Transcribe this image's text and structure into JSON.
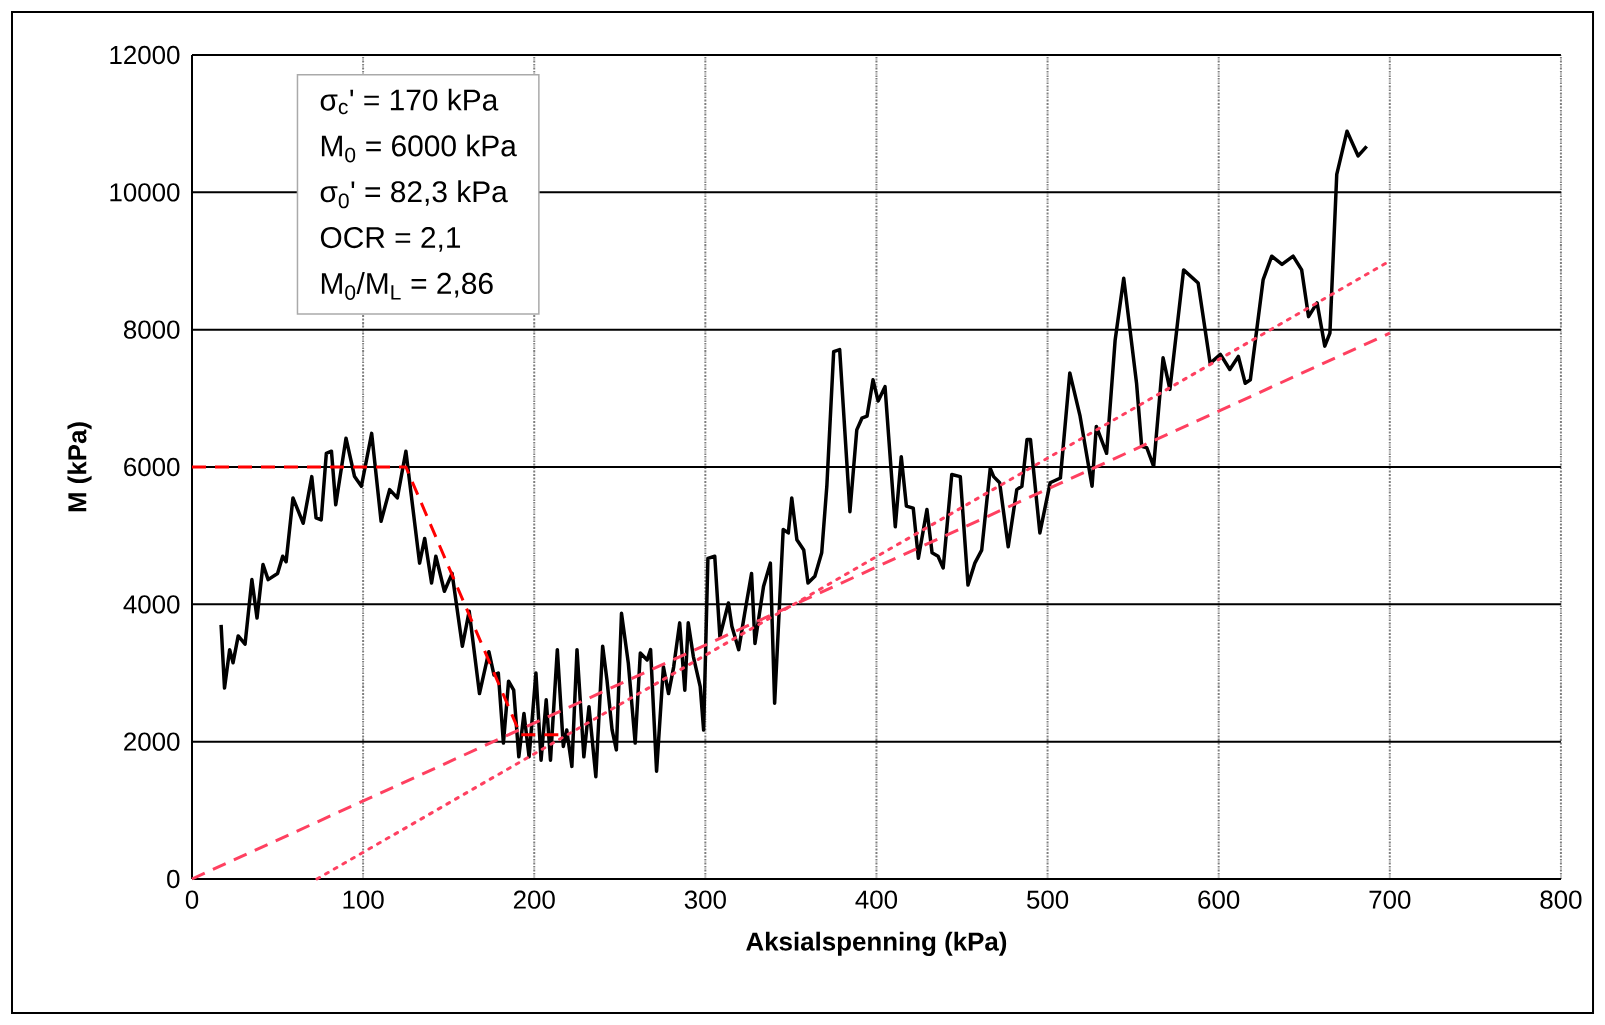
{
  "chart_data": {
    "type": "line",
    "xlabel": "Aksialspenning (kPa)",
    "ylabel": "M (kPa)",
    "xlim": [
      0,
      800
    ],
    "ylim": [
      0,
      12000
    ],
    "xticks": [
      0,
      100,
      200,
      300,
      400,
      500,
      600,
      700,
      800
    ],
    "yticks": [
      0,
      2000,
      4000,
      6000,
      8000,
      10000,
      12000
    ],
    "grid": true,
    "marker": "none",
    "annotations": [
      "σ$_{c}$' = 170 kPa",
      "M$_{0}$ = 6000 kPa",
      "σ$_{0}$' = 82,3 kPa",
      "OCR =  2,1",
      "M$_{0}$/M$_{L}$ = 2,86"
    ],
    "series": [
      {
        "color": "#000000",
        "line_style": "solid",
        "x": [
          17,
          19,
          22,
          24,
          27,
          31,
          35,
          38,
          41.5,
          44.5,
          50,
          53,
          55,
          59,
          65,
          70,
          72.5,
          75.5,
          78.5,
          81.5,
          84,
          90,
          95,
          99,
          105,
          110.5,
          115.5,
          120,
          125,
          133,
          136,
          140,
          142.5,
          147.5,
          152,
          158,
          162,
          168,
          173.5,
          176.5,
          179,
          182,
          185,
          188,
          191,
          194,
          197,
          201,
          204,
          207,
          209.5,
          213.5,
          217,
          219,
          222,
          225,
          229,
          232,
          236,
          240,
          242.5,
          245.5,
          248,
          251,
          255,
          259,
          262,
          266,
          268,
          271.5,
          275.5,
          278.5,
          281.5,
          285,
          288,
          290,
          293,
          297,
          299,
          301.5,
          305.5,
          308.5,
          313.5,
          315.5,
          319.5,
          323,
          327,
          329,
          334,
          338,
          340.5,
          345.5,
          348.5,
          350.5,
          353.5,
          357.5,
          360,
          364,
          368,
          371,
          375,
          378.5,
          384.5,
          388.5,
          391.5,
          394.5,
          398,
          401,
          405,
          411,
          414.5,
          417.5,
          421.5,
          424.5,
          429.5,
          432.5,
          436,
          439,
          444,
          449,
          453.5,
          457.5,
          461.5,
          466.5,
          468.5,
          472,
          477,
          482,
          485,
          488,
          490,
          495.5,
          501.5,
          507.5,
          513,
          519,
          526,
          528.5,
          534.5,
          539.5,
          544.5,
          552,
          555,
          558,
          562,
          567.5,
          571.5,
          579.5,
          588,
          595,
          601,
          606.5,
          611.5,
          615.5,
          618.5,
          626,
          631,
          637,
          643.5,
          648.5,
          652.5,
          657.5,
          662,
          665,
          669,
          675,
          681.5,
          686.5
        ],
        "values": [
          3700,
          2780,
          3340,
          3150,
          3540,
          3420,
          4360,
          3800,
          4580,
          4360,
          4450,
          4700,
          4620,
          5550,
          5180,
          5860,
          5260,
          5230,
          6200,
          6230,
          5450,
          6420,
          5860,
          5720,
          6490,
          5210,
          5670,
          5550,
          6230,
          4600,
          4960,
          4310,
          4700,
          4190,
          4450,
          3390,
          3900,
          2700,
          3310,
          2970,
          3000,
          1980,
          2880,
          2750,
          1780,
          2410,
          1780,
          3000,
          1730,
          2610,
          1730,
          3340,
          1930,
          2170,
          1640,
          3340,
          1780,
          2510,
          1490,
          3390,
          2900,
          2170,
          1880,
          3870,
          3140,
          1980,
          3290,
          3190,
          3340,
          1570,
          3090,
          2700,
          3090,
          3730,
          2750,
          3730,
          3240,
          2800,
          2170,
          4670,
          4700,
          3530,
          4020,
          3680,
          3340,
          3870,
          4450,
          3430,
          4260,
          4600,
          2560,
          5090,
          5040,
          5550,
          4940,
          4790,
          4310,
          4410,
          4750,
          5720,
          7680,
          7710,
          5350,
          6540,
          6710,
          6740,
          7270,
          6960,
          7170,
          5130,
          6150,
          5430,
          5400,
          4670,
          5380,
          4750,
          4700,
          4530,
          5890,
          5860,
          4280,
          4600,
          4790,
          5980,
          5860,
          5770,
          4840,
          5670,
          5720,
          6400,
          6400,
          5040,
          5770,
          5840,
          7370,
          6740,
          5720,
          6590,
          6200,
          7850,
          8750,
          7220,
          6300,
          6280,
          6010,
          7590,
          7130,
          8870,
          8680,
          7510,
          7640,
          7420,
          7610,
          7220,
          7270,
          8730,
          9070,
          8950,
          9070,
          8870,
          8190,
          8390,
          7760,
          7950,
          10260,
          10890,
          10530,
          10670
        ]
      },
      {
        "color": "#ff0000",
        "line_style": "dashed",
        "x": [
          0,
          125,
          192,
          215
        ],
        "values": [
          6000,
          6000,
          2100,
          2100
        ]
      },
      {
        "color": "#ff4060",
        "line_style": "dashed",
        "x": [
          0,
          700
        ],
        "values": [
          0,
          7950
        ]
      },
      {
        "color": "#ff4060",
        "line_style": "dotted",
        "x": [
          73,
          700
        ],
        "values": [
          0,
          9000
        ]
      }
    ]
  }
}
